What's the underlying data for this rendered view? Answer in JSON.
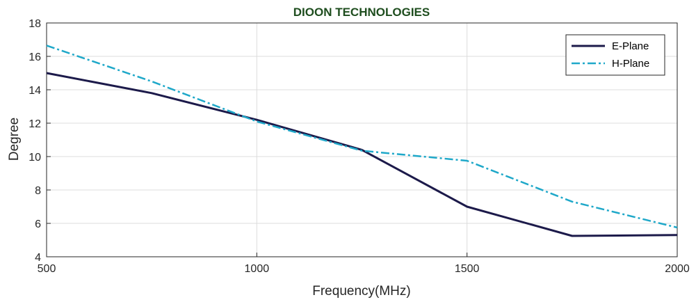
{
  "chart_data": {
    "type": "line",
    "title": "DIOON TECHNOLOGIES",
    "title_color": "#1e4d1e",
    "xlabel": "Frequency(MHz)",
    "ylabel": "Degree",
    "xlim": [
      500,
      2000
    ],
    "ylim": [
      4,
      18
    ],
    "xticks": [
      500,
      1000,
      1500,
      2000
    ],
    "yticks": [
      4,
      6,
      8,
      10,
      12,
      14,
      16,
      18
    ],
    "grid": true,
    "legend_position": "top-right",
    "series": [
      {
        "name": "E-Plane",
        "color": "#1c1a4a",
        "line_style": "solid",
        "x": [
          500,
          750,
          1000,
          1250,
          1500,
          1750,
          2000
        ],
        "y": [
          15.0,
          13.8,
          12.2,
          10.4,
          7.0,
          5.25,
          5.3
        ]
      },
      {
        "name": "H-Plane",
        "color": "#1fa8c9",
        "line_style": "dash-dot",
        "x": [
          500,
          750,
          1000,
          1250,
          1500,
          1750,
          2000
        ],
        "y": [
          16.65,
          14.5,
          12.1,
          10.35,
          9.75,
          7.3,
          5.75
        ]
      }
    ]
  }
}
